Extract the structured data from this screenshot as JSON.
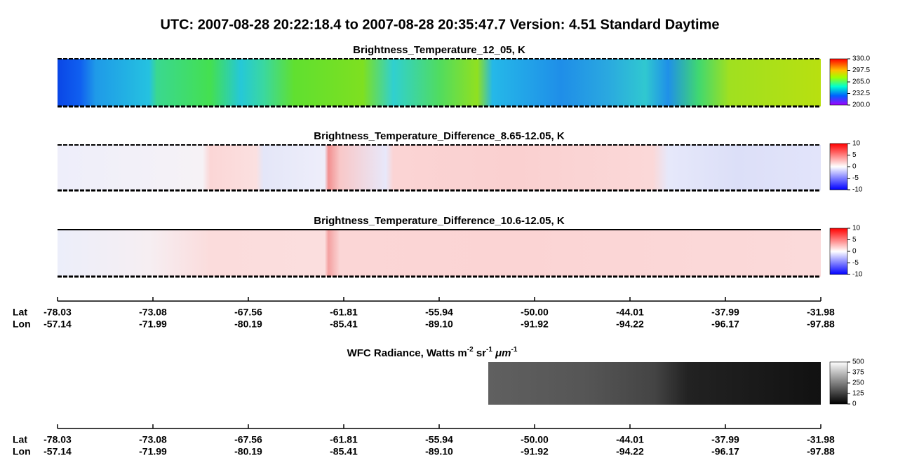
{
  "title": "UTC:  2007-08-28   20:22:18.4  to  2007-08-28   20:35:47.7    Version: 4.51  Standard Daytime",
  "panels": [
    {
      "title": "Brightness_Temperature_12_05, K",
      "colorbar_ticks": [
        "330.0",
        "297.5",
        "265.0",
        "232.5",
        "200.0"
      ]
    },
    {
      "title": "Brightness_Temperature_Difference_8.65-12.05, K",
      "colorbar_ticks": [
        "10",
        "5",
        "0",
        "-5",
        "-10"
      ]
    },
    {
      "title": "Brightness_Temperature_Difference_10.6-12.05, K",
      "colorbar_ticks": [
        "10",
        "5",
        "0",
        "-5",
        "-10"
      ]
    },
    {
      "title": {
        "text": "WFC Radiance, Watts m",
        "sup1": "-2",
        "mid1": " sr",
        "sup2": "-1",
        "mid2": " μm",
        "sup3": "-1"
      },
      "colorbar_ticks": [
        "500",
        "375",
        "250",
        "125",
        "0"
      ]
    }
  ],
  "axes": [
    {
      "lat_label": "Lat",
      "lon_label": "Lon",
      "lat": [
        "-78.03",
        "-73.08",
        "-67.56",
        "-61.81",
        "-55.94",
        "-50.00",
        "-44.01",
        "-37.99",
        "-31.98"
      ],
      "lon": [
        "-57.14",
        "-71.99",
        "-80.19",
        "-85.41",
        "-89.10",
        "-91.92",
        "-94.22",
        "-96.17",
        "-97.88"
      ]
    },
    {
      "lat_label": "Lat",
      "lon_label": "Lon",
      "lat": [
        "-78.03",
        "-73.08",
        "-67.56",
        "-61.81",
        "-55.94",
        "-50.00",
        "-44.01",
        "-37.99",
        "-31.98"
      ],
      "lon": [
        "-57.14",
        "-71.99",
        "-80.19",
        "-85.41",
        "-89.10",
        "-91.92",
        "-94.22",
        "-96.17",
        "-97.88"
      ]
    }
  ]
}
